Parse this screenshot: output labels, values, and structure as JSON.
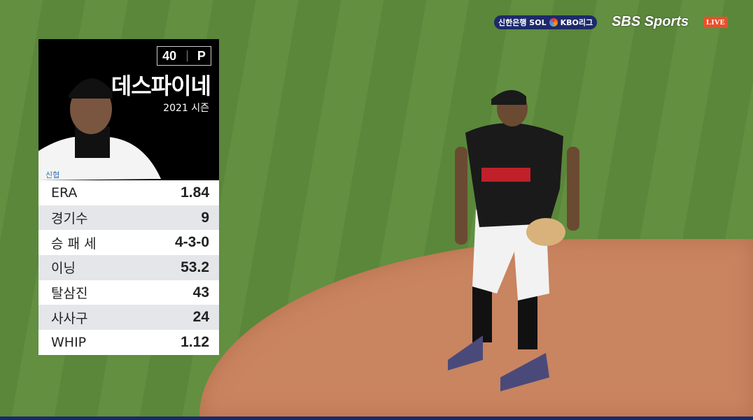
{
  "broadcast": {
    "sponsor": "신한은행 SOL",
    "league": "KBO리그",
    "network": "SBS Sports",
    "live_badge": "LIVE"
  },
  "player_card": {
    "number": "40",
    "position": "P",
    "name": "데스파이네",
    "season": "2021 시즌",
    "jersey_sponsor": "신협",
    "stats": [
      {
        "label": "ERA",
        "value": "1.84"
      },
      {
        "label": "경기수",
        "value": "9"
      },
      {
        "label": "승 패 세",
        "value": "4-3-0"
      },
      {
        "label": "이닝",
        "value": "53.2"
      },
      {
        "label": "탈삼진",
        "value": "43"
      },
      {
        "label": "사사구",
        "value": "24"
      },
      {
        "label": "WHIP",
        "value": "1.12"
      }
    ]
  },
  "colors": {
    "grass": "#5f8c3e",
    "dirt": "#c98460",
    "live": "#e8502c",
    "kbo_navy": "#1d2a6b"
  }
}
